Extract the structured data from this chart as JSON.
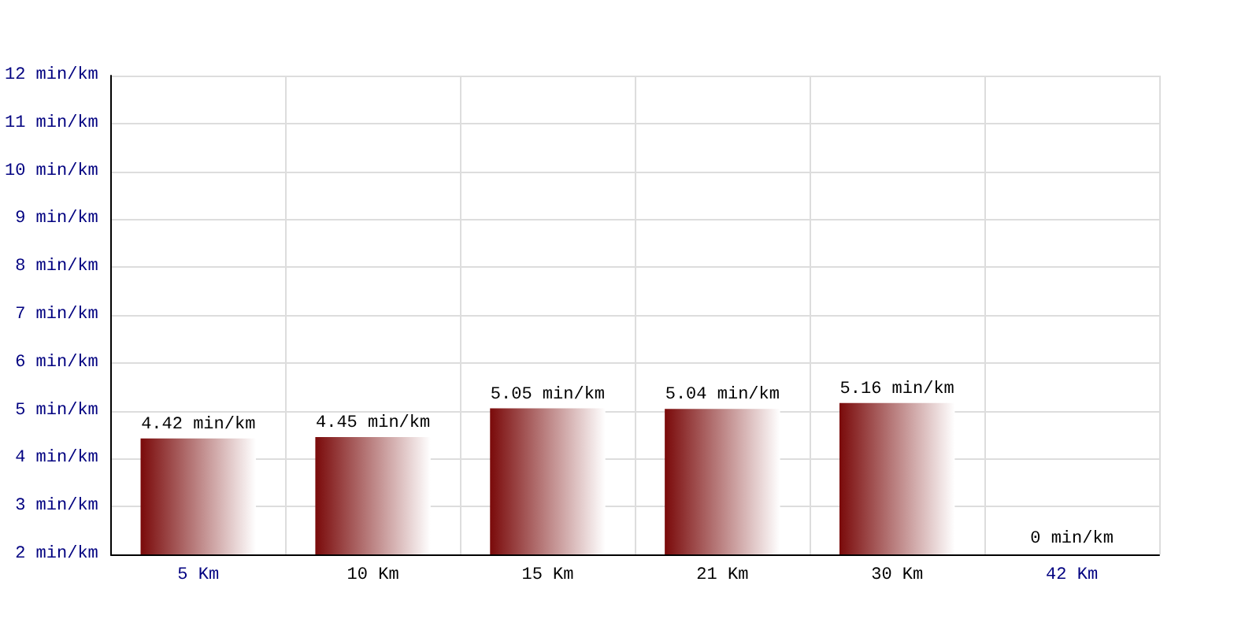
{
  "chart_data": {
    "type": "bar",
    "categories": [
      "5 Km",
      "10 Km",
      "15 Km",
      "21 Km",
      "30 Km",
      "42 Km"
    ],
    "values": [
      4.42,
      4.45,
      5.05,
      5.04,
      5.16,
      null
    ],
    "color": "#7a0a0a",
    "ylim": [
      2,
      12
    ],
    "yticks": [
      {
        "value": 2,
        "label": "2 min/km"
      },
      {
        "value": 3,
        "label": "3 min/km"
      },
      {
        "value": 4,
        "label": "4 min/km"
      },
      {
        "value": 5,
        "label": "5 min/km"
      },
      {
        "value": 6,
        "label": "6 min/km"
      },
      {
        "value": 7,
        "label": "7 min/km"
      },
      {
        "value": 8,
        "label": "8 min/km"
      },
      {
        "value": 9,
        "label": "9 min/km"
      },
      {
        "value": 10,
        "label": "10 min/km"
      },
      {
        "value": 11,
        "label": "11 min/km"
      },
      {
        "value": 12,
        "label": "12 min/km"
      }
    ],
    "value_labels": [
      "4.42 min/km",
      "4.45 min/km",
      "5.05 min/km",
      "5.04 min/km",
      "5.16 min/km",
      "0 min/km"
    ],
    "grid": true
  }
}
